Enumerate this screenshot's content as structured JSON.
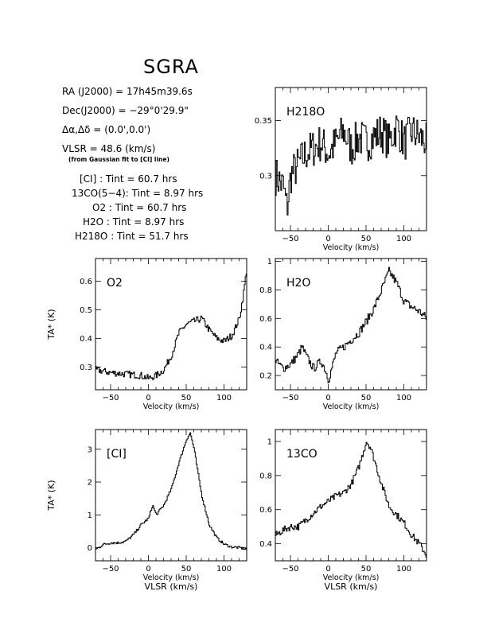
{
  "title": "SGRA",
  "info": {
    "ra_label": "RA (J2000) =",
    "ra_value": "17h45m39.6s",
    "dec_label": "Dec(J2000) =",
    "dec_value": "−29°0'29.9\"",
    "offset_label": "Δα,Δδ =",
    "offset_value": "(0.0',0.0')",
    "vlsr_label": "VLSR =",
    "vlsr_value": "48.6 (km/s)",
    "vlsr_note": "(from Gaussian fit to [CI] line)",
    "integrations": [
      {
        "line": "[CI]",
        "tint": "Tint = 60.7 hrs"
      },
      {
        "line": "13CO(5−4)",
        "tint": "Tint = 8.97 hrs"
      },
      {
        "line": "O2",
        "tint": "Tint = 60.7 hrs"
      },
      {
        "line": "H2O",
        "tint": "Tint = 8.97 hrs"
      },
      {
        "line": "H218O",
        "tint": "Tint = 51.7 hrs"
      }
    ]
  },
  "chart_data": [
    {
      "type": "line",
      "label": "H218O",
      "xlabel": "Velocity (km/s)",
      "ylabel": "",
      "xlim": [
        -70,
        130
      ],
      "ylim": [
        0.25,
        0.38
      ],
      "yticks": [
        0.3,
        0.35
      ],
      "xticks": [
        -50,
        0,
        50,
        100
      ],
      "x": [
        -70,
        -60,
        -55,
        -50,
        -40,
        -30,
        -20,
        -10,
        0,
        10,
        20,
        30,
        40,
        50,
        60,
        70,
        80,
        90,
        100,
        110,
        120,
        130
      ],
      "y": [
        0.3,
        0.29,
        0.27,
        0.3,
        0.31,
        0.32,
        0.325,
        0.33,
        0.32,
        0.33,
        0.34,
        0.325,
        0.335,
        0.33,
        0.335,
        0.34,
        0.33,
        0.345,
        0.33,
        0.34,
        0.335,
        0.33
      ]
    },
    {
      "type": "line",
      "label": "O2",
      "xlabel": "Velocity (km/s)",
      "ylabel": "TA* (K)",
      "xlim": [
        -70,
        130
      ],
      "ylim": [
        0.22,
        0.68
      ],
      "yticks": [
        0.3,
        0.4,
        0.5,
        0.6
      ],
      "xticks": [
        -50,
        0,
        50,
        100
      ],
      "x": [
        -70,
        -50,
        -30,
        -10,
        0,
        10,
        20,
        30,
        40,
        50,
        60,
        70,
        80,
        90,
        100,
        110,
        120,
        125,
        130
      ],
      "y": [
        0.29,
        0.28,
        0.275,
        0.27,
        0.26,
        0.27,
        0.29,
        0.34,
        0.42,
        0.45,
        0.46,
        0.47,
        0.43,
        0.4,
        0.39,
        0.41,
        0.47,
        0.55,
        0.65
      ]
    },
    {
      "type": "line",
      "label": "H2O",
      "xlabel": "Velocity (km/s)",
      "ylabel": "",
      "xlim": [
        -70,
        130
      ],
      "ylim": [
        0.1,
        1.02
      ],
      "yticks": [
        0.2,
        0.4,
        0.6,
        0.8,
        1
      ],
      "xticks": [
        -50,
        0,
        50,
        100
      ],
      "x": [
        -70,
        -60,
        -50,
        -40,
        -35,
        -30,
        -20,
        -10,
        -5,
        0,
        10,
        20,
        30,
        40,
        50,
        60,
        70,
        80,
        90,
        100,
        110,
        120,
        130
      ],
      "y": [
        0.3,
        0.25,
        0.28,
        0.35,
        0.4,
        0.34,
        0.25,
        0.3,
        0.25,
        0.17,
        0.36,
        0.4,
        0.45,
        0.5,
        0.58,
        0.67,
        0.8,
        0.93,
        0.85,
        0.72,
        0.68,
        0.65,
        0.6
      ]
    },
    {
      "type": "line",
      "label": "[CI]",
      "xlabel": "Velocity (km/s)",
      "ylabel": "TA* (K)",
      "xlim": [
        -70,
        130
      ],
      "ylim": [
        -0.4,
        3.6
      ],
      "yticks": [
        0,
        1,
        2,
        3
      ],
      "xticks": [
        -50,
        0,
        50,
        100
      ],
      "x": [
        -70,
        -60,
        -50,
        -40,
        -30,
        -20,
        -10,
        0,
        5,
        10,
        20,
        30,
        40,
        50,
        55,
        60,
        70,
        80,
        90,
        100,
        110,
        120,
        130
      ],
      "y": [
        -0.05,
        0.1,
        0.15,
        0.15,
        0.2,
        0.4,
        0.7,
        0.9,
        1.3,
        1.0,
        1.3,
        1.8,
        2.6,
        3.3,
        3.5,
        3.0,
        1.6,
        0.7,
        0.3,
        0.1,
        0.02,
        0.0,
        -0.05
      ]
    },
    {
      "type": "line",
      "label": "13CO",
      "xlabel": "Velocity (km/s)",
      "ylabel": "",
      "xlim": [
        -70,
        130
      ],
      "ylim": [
        0.3,
        1.07
      ],
      "yticks": [
        0.4,
        0.6,
        0.8,
        1
      ],
      "xticks": [
        -50,
        0,
        50,
        100
      ],
      "x": [
        -70,
        -60,
        -50,
        -40,
        -30,
        -20,
        -10,
        0,
        10,
        20,
        30,
        40,
        50,
        55,
        60,
        70,
        80,
        90,
        100,
        110,
        120,
        130
      ],
      "y": [
        0.45,
        0.48,
        0.5,
        0.5,
        0.54,
        0.58,
        0.62,
        0.65,
        0.68,
        0.7,
        0.75,
        0.85,
        1.0,
        0.97,
        0.9,
        0.75,
        0.62,
        0.57,
        0.52,
        0.45,
        0.4,
        0.33
      ]
    }
  ],
  "shared_xlabel": "VLSR (km/s)"
}
